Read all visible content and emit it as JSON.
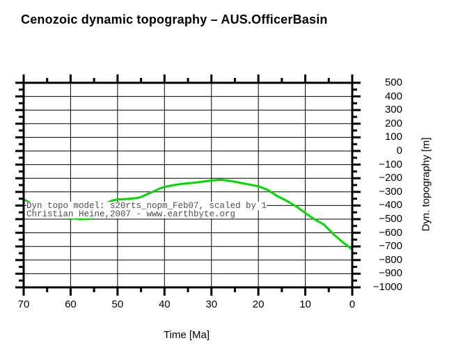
{
  "title": "Cenozoic dynamic topography – AUS.OfficerBasin",
  "colors": {
    "curve": "#00d800",
    "frame": "#000000",
    "grid": "#000000",
    "annotation_text": "#4d4d4d",
    "background": "#ffffff"
  },
  "chart_data": {
    "type": "line",
    "title": "Cenozoic dynamic topography – AUS.OfficerBasin",
    "xlabel": "Time [Ma]",
    "ylabel": "Dyn. topography [m]",
    "xlim": [
      70,
      0
    ],
    "ylim": [
      -1000,
      500
    ],
    "x_ticks_major": [
      70,
      60,
      50,
      40,
      30,
      20,
      10,
      0
    ],
    "x_minor_tick_interval": 5,
    "y_ticks_major": [
      500,
      400,
      300,
      200,
      100,
      0,
      -100,
      -200,
      -300,
      -400,
      -500,
      -600,
      -700,
      -800,
      -900,
      -1000
    ],
    "y_minor_tick_interval": 50,
    "grid": true,
    "legend": "none",
    "series": [
      {
        "name": "dynamic-topography",
        "color": "#00d800",
        "x": [
          70,
          68,
          66,
          64,
          62,
          60,
          58,
          56,
          55,
          54,
          53,
          52,
          51,
          50,
          48,
          46,
          45,
          44,
          43,
          42,
          41,
          40,
          38,
          36,
          34,
          32,
          30,
          28,
          26,
          24,
          22,
          20,
          18,
          16,
          14,
          12,
          10,
          8,
          6,
          4,
          2,
          0
        ],
        "y": [
          -355,
          -390,
          -425,
          -455,
          -478,
          -492,
          -500,
          -498,
          -485,
          -445,
          -405,
          -375,
          -362,
          -356,
          -352,
          -346,
          -338,
          -322,
          -306,
          -292,
          -275,
          -264,
          -250,
          -240,
          -234,
          -226,
          -217,
          -211,
          -220,
          -232,
          -246,
          -258,
          -285,
          -330,
          -365,
          -405,
          -455,
          -502,
          -540,
          -610,
          -670,
          -722
        ]
      }
    ],
    "annotations": [
      "Dyn topo model: s20rts_nopm_Feb07, scaled by 1",
      "Christian Heine,2007 - www.earthbyte.org"
    ]
  }
}
